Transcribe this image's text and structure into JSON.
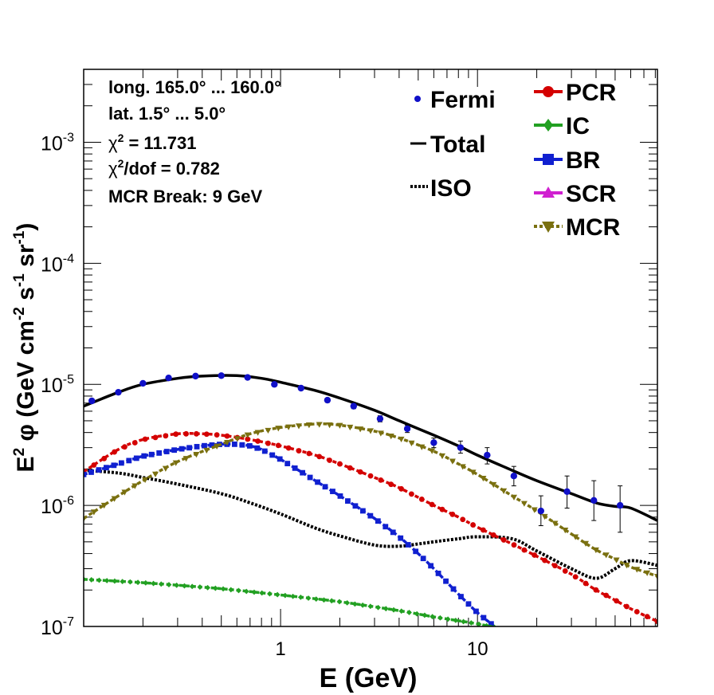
{
  "chart_data": {
    "type": "line",
    "xscale": "log",
    "yscale": "log",
    "xlim": [
      0.1,
      82
    ],
    "ylim": [
      1e-07,
      0.004
    ],
    "xlabel": "E (GeV)",
    "ylabel": "E² φ (GeV cm⁻² s⁻¹ sr⁻¹)",
    "ylabel_parts": {
      "e": "E",
      "e_sup": "2",
      "phi": " φ (GeV cm",
      "cm_sup": "-2",
      "s": " s",
      "s_sup": "-1",
      "sr": " sr",
      "sr_sup": "-1",
      "close": ")"
    },
    "x_ticks": [
      {
        "value": 1,
        "label": "1"
      },
      {
        "value": 10,
        "label": "10"
      }
    ],
    "y_ticks": [
      {
        "value": 1e-07,
        "base": "10",
        "exp": "-7"
      },
      {
        "value": 1e-06,
        "base": "10",
        "exp": "-6"
      },
      {
        "value": 1e-05,
        "base": "10",
        "exp": "-5"
      },
      {
        "value": 0.0001,
        "base": "10",
        "exp": "-4"
      },
      {
        "value": 0.001,
        "base": "10",
        "exp": "-3"
      }
    ],
    "info": {
      "line1": "long. 165.0° ... 160.0°",
      "line2": "lat. 1.5° ... 5.0°",
      "chi_sym": "χ",
      "chi_sup": "2",
      "line3_rest": " = 11.731",
      "line4_rest": "/dof = 0.782",
      "line5": "MCR Break:  9 GeV"
    },
    "legend": {
      "fermi": "Fermi",
      "total": "Total",
      "iso": "ISO",
      "pcr": "PCR",
      "ic": "IC",
      "br": "BR",
      "scr": "SCR",
      "mcr": "MCR"
    },
    "colors": {
      "fermi": "#1010c8",
      "total": "#000000",
      "iso": "#000000",
      "pcr": "#d40000",
      "ic": "#22a022",
      "br": "#1020d0",
      "scr": "#d020d0",
      "mcr": "#7a7010"
    },
    "fermi_points": [
      {
        "x": 0.11,
        "y": 7.3e-06,
        "err": [
          7e-06,
          7.6e-06
        ]
      },
      {
        "x": 0.15,
        "y": 8.6e-06,
        "err": [
          8.3e-06,
          8.9e-06
        ]
      },
      {
        "x": 0.2,
        "y": 1.02e-05,
        "err": [
          9.9e-06,
          1.05e-05
        ]
      },
      {
        "x": 0.27,
        "y": 1.13e-05,
        "err": [
          1.1e-05,
          1.16e-05
        ]
      },
      {
        "x": 0.37,
        "y": 1.17e-05,
        "err": [
          1.14e-05,
          1.2e-05
        ]
      },
      {
        "x": 0.5,
        "y": 1.18e-05,
        "err": [
          1.15e-05,
          1.21e-05
        ]
      },
      {
        "x": 0.68,
        "y": 1.14e-05,
        "err": [
          1.11e-05,
          1.17e-05
        ]
      },
      {
        "x": 0.93,
        "y": 1e-05,
        "err": [
          9.7e-06,
          1.03e-05
        ]
      },
      {
        "x": 1.27,
        "y": 9.3e-06,
        "err": [
          9e-06,
          9.6e-06
        ]
      },
      {
        "x": 1.73,
        "y": 7.4e-06,
        "err": [
          7.1e-06,
          7.7e-06
        ]
      },
      {
        "x": 2.35,
        "y": 6.6e-06,
        "err": [
          6.3e-06,
          6.9e-06
        ]
      },
      {
        "x": 3.2,
        "y": 5.2e-06,
        "err": [
          4.9e-06,
          5.5e-06
        ]
      },
      {
        "x": 4.4,
        "y": 4.3e-06,
        "err": [
          4e-06,
          4.6e-06
        ]
      },
      {
        "x": 6.0,
        "y": 3.3e-06,
        "err": [
          3e-06,
          3.6e-06
        ]
      },
      {
        "x": 8.2,
        "y": 3e-06,
        "err": [
          2.7e-06,
          3.4e-06
        ]
      },
      {
        "x": 11.2,
        "y": 2.6e-06,
        "err": [
          2.2e-06,
          3e-06
        ]
      },
      {
        "x": 15.3,
        "y": 1.75e-06,
        "err": [
          1.45e-06,
          2.1e-06
        ]
      },
      {
        "x": 21.0,
        "y": 9e-07,
        "err": [
          6.8e-07,
          1.2e-06
        ]
      },
      {
        "x": 28.5,
        "y": 1.3e-06,
        "err": [
          9.5e-07,
          1.75e-06
        ]
      },
      {
        "x": 39.0,
        "y": 1.1e-06,
        "err": [
          7.5e-07,
          1.6e-06
        ]
      },
      {
        "x": 53.0,
        "y": 1e-06,
        "err": [
          6e-07,
          1.45e-06
        ]
      }
    ],
    "series": [
      {
        "key": "total",
        "style": "solid",
        "marker": "none",
        "x": [
          0.1,
          0.15,
          0.2,
          0.3,
          0.4,
          0.6,
          0.8,
          1.0,
          1.5,
          2,
          3,
          4,
          6,
          8,
          10,
          15,
          20,
          30,
          40,
          50,
          60,
          82
        ],
        "y": [
          6.6e-06,
          8.6e-06,
          1e-05,
          1.12e-05,
          1.17e-05,
          1.18e-05,
          1.12e-05,
          1.04e-05,
          8.9e-06,
          7.7e-06,
          6.1e-06,
          5e-06,
          3.8e-06,
          3.1e-06,
          2.6e-06,
          1.95e-06,
          1.6e-06,
          1.25e-06,
          1.05e-06,
          9.8e-07,
          9.5e-07,
          7.5e-07
        ]
      },
      {
        "key": "iso",
        "style": "dotted",
        "marker": "none",
        "x": [
          0.1,
          0.15,
          0.2,
          0.3,
          0.5,
          0.7,
          1.0,
          1.5,
          2,
          3,
          4,
          5,
          6,
          8,
          10,
          15,
          20,
          30,
          40,
          50,
          60,
          82
        ],
        "y": [
          1.95e-06,
          1.85e-06,
          1.7e-06,
          1.5e-06,
          1.25e-06,
          1.05e-06,
          8.5e-07,
          6.5e-07,
          5.6e-07,
          4.7e-07,
          4.6e-07,
          4.8e-07,
          5e-07,
          5.3e-07,
          5.5e-07,
          5.3e-07,
          4.2e-07,
          3e-07,
          2.5e-07,
          3e-07,
          3.5e-07,
          3.2e-07
        ]
      },
      {
        "key": "pcr",
        "style": "dashed",
        "marker": "circle",
        "x": [
          0.1,
          0.15,
          0.2,
          0.3,
          0.4,
          0.5,
          0.7,
          1.0,
          1.5,
          2,
          3,
          4,
          6,
          8,
          10,
          15,
          20,
          30,
          40,
          50,
          60,
          82
        ],
        "y": [
          1.9e-06,
          2.9e-06,
          3.5e-06,
          3.9e-06,
          3.9e-06,
          3.8e-06,
          3.5e-06,
          3.1e-06,
          2.6e-06,
          2.2e-06,
          1.7e-06,
          1.4e-06,
          1e-06,
          8e-07,
          6.6e-07,
          4.8e-07,
          3.8e-07,
          2.7e-07,
          2e-07,
          1.65e-07,
          1.4e-07,
          1.1e-07
        ]
      },
      {
        "key": "br",
        "style": "dashed",
        "marker": "square",
        "x": [
          0.1,
          0.15,
          0.2,
          0.3,
          0.4,
          0.5,
          0.6,
          0.7,
          0.8,
          1.0,
          1.3,
          1.6,
          2,
          3,
          4,
          5,
          6,
          8,
          10,
          12,
          14
        ],
        "y": [
          1.8e-06,
          2.2e-06,
          2.55e-06,
          2.9e-06,
          3.1e-06,
          3.2e-06,
          3.2e-06,
          3.1e-06,
          2.9e-06,
          2.4e-06,
          1.85e-06,
          1.5e-06,
          1.2e-06,
          7.8e-07,
          5.5e-07,
          4e-07,
          3e-07,
          1.85e-07,
          1.3e-07,
          1.02e-07,
          8e-08
        ]
      },
      {
        "key": "mcr",
        "style": "dashed",
        "marker": "triangle-down",
        "x": [
          0.1,
          0.15,
          0.2,
          0.3,
          0.5,
          0.7,
          1.0,
          1.5,
          2,
          3,
          4,
          6,
          8,
          10,
          15,
          20,
          30,
          40,
          50,
          60,
          82
        ],
        "y": [
          7.8e-07,
          1.2e-06,
          1.6e-06,
          2.3e-06,
          3.2e-06,
          3.9e-06,
          4.4e-06,
          4.7e-06,
          4.6e-06,
          4.1e-06,
          3.6e-06,
          2.8e-06,
          2.2e-06,
          1.8e-06,
          1.2e-06,
          9e-07,
          5.8e-07,
          4.3e-07,
          3.6e-07,
          3.1e-07,
          2.6e-07
        ]
      },
      {
        "key": "ic",
        "style": "dashed",
        "marker": "diamond",
        "x": [
          0.1,
          0.2,
          0.5,
          1.0,
          2,
          4,
          6,
          10,
          16
        ],
        "y": [
          2.45e-07,
          2.3e-07,
          2.05e-07,
          1.82e-07,
          1.6e-07,
          1.35e-07,
          1.2e-07,
          1.05e-07,
          9e-08
        ]
      }
    ]
  }
}
